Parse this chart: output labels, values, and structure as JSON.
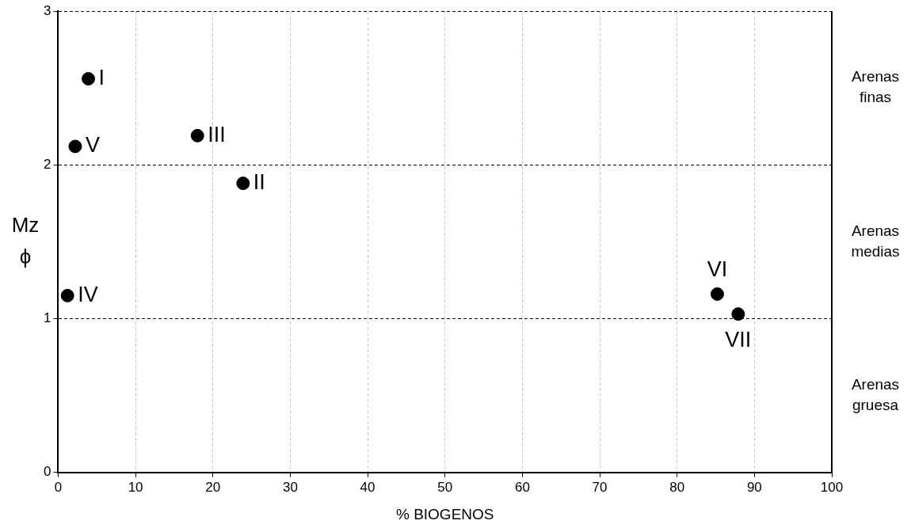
{
  "chart_data": {
    "type": "scatter",
    "xlabel": "% BIOGENOS",
    "ylabel": "Mz ϕ",
    "x": [
      3.9,
      23.9,
      18.0,
      1.2,
      2.2,
      85.2,
      87.9
    ],
    "series": [
      {
        "color": "#000000",
        "values": [
          2.56,
          1.88,
          2.19,
          1.15,
          2.12,
          1.16,
          1.03
        ]
      }
    ],
    "xlim": [
      0,
      100
    ],
    "xticks": [
      0,
      10,
      20,
      30,
      40,
      50,
      60,
      70,
      80,
      90,
      100
    ],
    "ylim": [
      0,
      3
    ],
    "yticks": [
      0,
      1,
      2,
      3
    ],
    "grid": true,
    "legend": false,
    "marker": "circle",
    "annotations": [
      {
        "text": "I",
        "x": 3.9,
        "y": 2.56
      },
      {
        "text": "II",
        "x": 23.9,
        "y": 1.88
      },
      {
        "text": "III",
        "x": 18.0,
        "y": 2.19
      },
      {
        "text": "IV",
        "x": 1.2,
        "y": 1.15
      },
      {
        "text": "V",
        "x": 2.2,
        "y": 2.12
      },
      {
        "text": "VI",
        "x": 85.2,
        "y": 1.16
      },
      {
        "text": "VII",
        "x": 87.9,
        "y": 1.03
      },
      "Arenas finas",
      "Arenas medias",
      "Arenas gruesa"
    ]
  }
}
